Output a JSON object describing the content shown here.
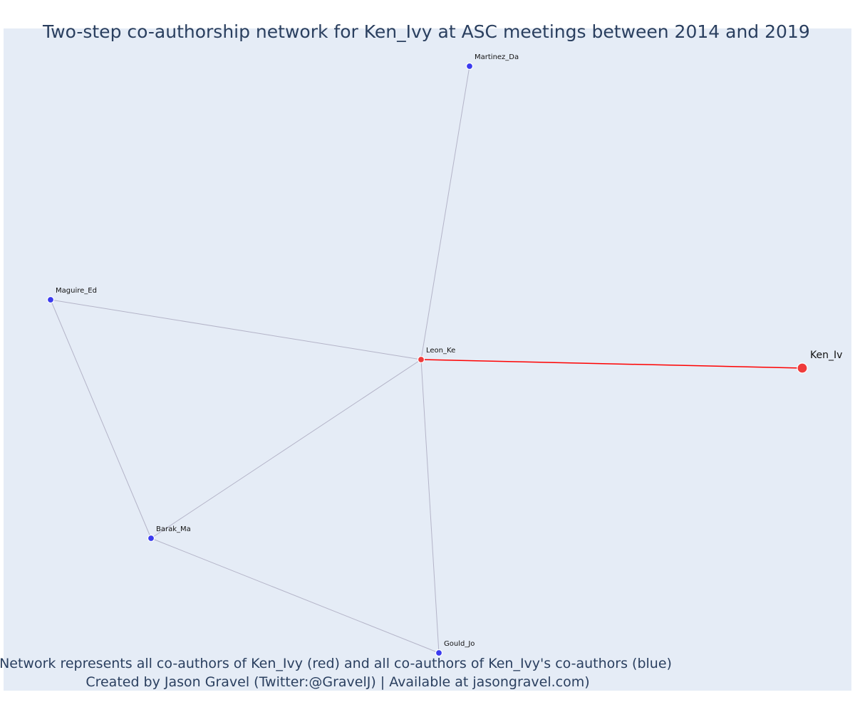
{
  "title": "Two-step co-authorship network for Ken_Ivy at ASC meetings between 2014 and 2019",
  "footnote": {
    "line1": "Network represents all co-authors of Ken_Ivy (red) and all co-authors of Ken_Ivy's co-authors (blue)",
    "line2": "Created by Jason Gravel (Twitter:@GravelJ) | Available at jasongravel.com)"
  },
  "colors": {
    "plot_bg": "#e5ecf6",
    "title": "#2a3f5f",
    "edge": "#b4b4c8",
    "focal_edge": "#ff0000",
    "red_node": "#ef3b3b",
    "blue_node": "#3b3bef"
  },
  "network": {
    "nodes": [
      {
        "id": "Martinez_Da",
        "label": "Martinez_Da",
        "group": "two-step"
      },
      {
        "id": "Maguire_Ed",
        "label": "Maguire_Ed",
        "group": "two-step"
      },
      {
        "id": "Leon_Ke",
        "label": "Leon_Ke",
        "group": "co-author"
      },
      {
        "id": "Ken_Iv",
        "label": "Ken_Iv",
        "group": "focal"
      },
      {
        "id": "Barak_Ma",
        "label": "Barak_Ma",
        "group": "two-step"
      },
      {
        "id": "Gould_Jo",
        "label": "Gould_Jo",
        "group": "two-step"
      }
    ],
    "edges": [
      {
        "source": "Leon_Ke",
        "target": "Ken_Iv",
        "focal": true
      },
      {
        "source": "Leon_Ke",
        "target": "Martinez_Da",
        "focal": false
      },
      {
        "source": "Leon_Ke",
        "target": "Maguire_Ed",
        "focal": false
      },
      {
        "source": "Leon_Ke",
        "target": "Barak_Ma",
        "focal": false
      },
      {
        "source": "Leon_Ke",
        "target": "Gould_Jo",
        "focal": false
      },
      {
        "source": "Maguire_Ed",
        "target": "Barak_Ma",
        "focal": false
      },
      {
        "source": "Barak_Ma",
        "target": "Gould_Jo",
        "focal": false
      }
    ]
  }
}
